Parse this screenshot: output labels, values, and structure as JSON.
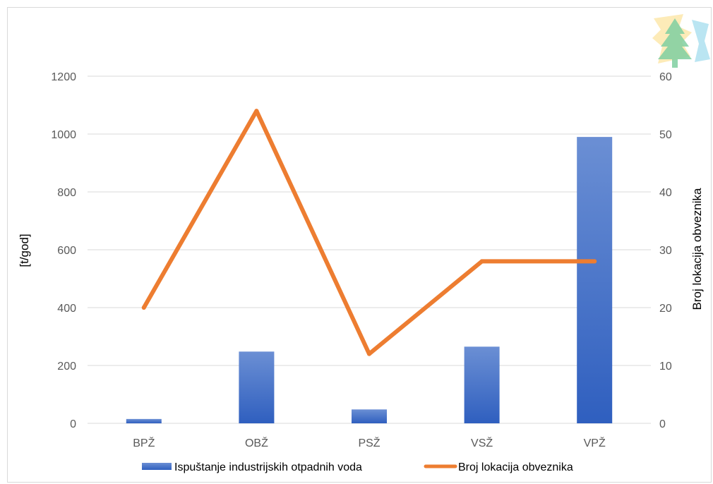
{
  "chart_data": {
    "type": "bar+line",
    "categories": [
      "BPŽ",
      "OBŽ",
      "PSŽ",
      "VSŽ",
      "VPŽ"
    ],
    "series": [
      {
        "name": "Ispuštanje industrijskih otpadnih voda",
        "type": "bar",
        "axis": "left",
        "color": "#4472c4",
        "values": [
          15,
          248,
          48,
          265,
          990
        ]
      },
      {
        "name": "Broj lokacija obveznika",
        "type": "line",
        "axis": "right",
        "color": "#ed7d31",
        "values": [
          20,
          54,
          12,
          28,
          28
        ]
      }
    ],
    "ylabel_left": "[t/god]",
    "ylabel_right": "Broj lokacija obveznika",
    "ylim_left": [
      0,
      1200
    ],
    "ylim_right": [
      0,
      60
    ],
    "yticks_left": [
      0,
      200,
      400,
      600,
      800,
      1000,
      1200
    ],
    "yticks_right": [
      0,
      10,
      20,
      30,
      40,
      50,
      60
    ],
    "grid": true,
    "legend": "bottom"
  },
  "logo": {
    "name": "tree-logo-icon"
  }
}
